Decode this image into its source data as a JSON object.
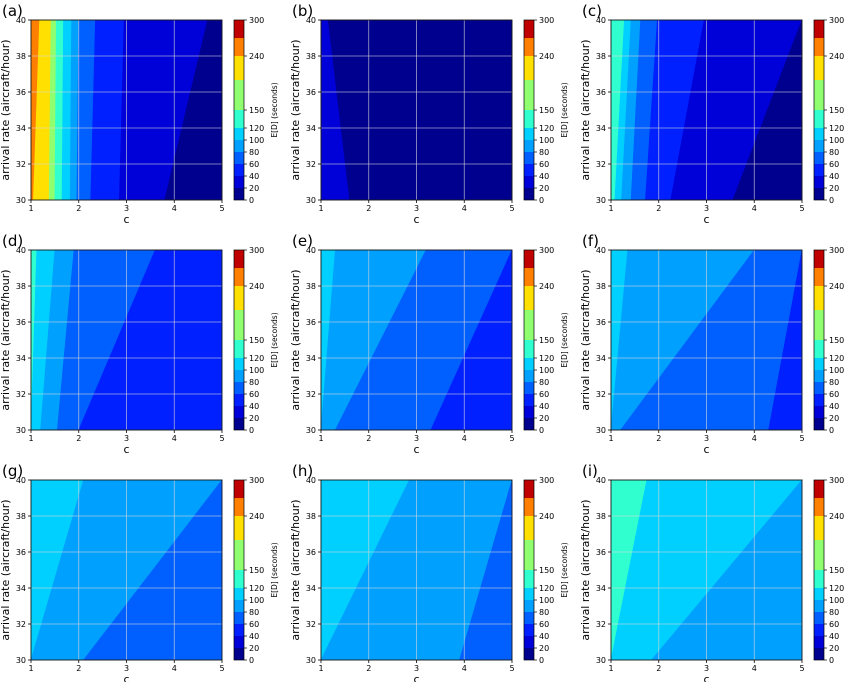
{
  "figure": {
    "description_colormap": "jet",
    "colorbar": {
      "label": "E[D] (seconds)",
      "ticks": [
        0,
        20,
        40,
        60,
        80,
        100,
        120,
        150,
        240,
        300
      ],
      "levels": [
        0,
        20,
        40,
        60,
        80,
        100,
        120,
        150,
        200,
        240,
        270,
        300
      ],
      "colors": [
        "#00008f",
        "#0000d8",
        "#0020ff",
        "#0060ff",
        "#00a0ff",
        "#00d0ff",
        "#30ffcf",
        "#8fff70",
        "#ffe000",
        "#ff8000",
        "#c00000"
      ]
    }
  },
  "chart_data": [
    {
      "type": "heatmap",
      "panel": "(a)",
      "xlabel": "c",
      "ylabel": "arrival rate (aircraft/hour)",
      "x_ticks": [
        1,
        2,
        3,
        4,
        5
      ],
      "y_ticks": [
        30,
        32,
        34,
        36,
        38,
        40
      ],
      "xlim": [
        1,
        5
      ],
      "ylim": [
        30,
        40
      ],
      "grid": true,
      "regions": [
        {
          "from_value": 240,
          "to_value": 300,
          "x_low": [
            1.0,
            1.0
          ],
          "x_high": [
            1.05,
            1.18
          ]
        },
        {
          "from_value": 200,
          "to_value": 240,
          "x_low": [
            1.05,
            1.18
          ],
          "x_high": [
            1.38,
            1.42
          ]
        },
        {
          "from_value": 150,
          "to_value": 200,
          "x_low": [
            1.38,
            1.42
          ],
          "x_high": [
            1.5,
            1.53
          ]
        },
        {
          "from_value": 120,
          "to_value": 150,
          "x_low": [
            1.5,
            1.53
          ],
          "x_high": [
            1.65,
            1.68
          ]
        },
        {
          "from_value": 100,
          "to_value": 120,
          "x_low": [
            1.65,
            1.68
          ],
          "x_high": [
            1.82,
            1.85
          ]
        },
        {
          "from_value": 80,
          "to_value": 100,
          "x_low": [
            1.82,
            1.85
          ],
          "x_high": [
            1.96,
            2.0
          ]
        },
        {
          "from_value": 60,
          "to_value": 80,
          "x_low": [
            1.96,
            2.0
          ],
          "x_high": [
            2.25,
            2.35
          ]
        },
        {
          "from_value": 40,
          "to_value": 60,
          "x_low": [
            2.25,
            2.35
          ],
          "x_high": [
            2.85,
            2.95
          ]
        },
        {
          "from_value": 20,
          "to_value": 40,
          "x_low": [
            2.85,
            2.95
          ],
          "x_high": [
            3.8,
            4.7
          ]
        },
        {
          "from_value": 0,
          "to_value": 20,
          "x_low": [
            3.8,
            4.7
          ],
          "x_high": [
            5.0,
            5.0
          ]
        }
      ]
    },
    {
      "type": "heatmap",
      "panel": "(b)",
      "xlabel": "c",
      "ylabel": "arrival rate (aircraft/hour)",
      "x_ticks": [
        1,
        2,
        3,
        4,
        5
      ],
      "y_ticks": [
        30,
        32,
        34,
        36,
        38,
        40
      ],
      "xlim": [
        1,
        5
      ],
      "ylim": [
        30,
        40
      ],
      "grid": true,
      "regions": [
        {
          "from_value": 20,
          "to_value": 40,
          "x_low": [
            1.0,
            1.0
          ],
          "x_high": [
            1.6,
            1.15
          ]
        },
        {
          "from_value": 0,
          "to_value": 20,
          "x_low": [
            1.6,
            1.15
          ],
          "x_high": [
            5.0,
            5.0
          ]
        }
      ]
    },
    {
      "type": "heatmap",
      "panel": "(c)",
      "xlabel": "c",
      "ylabel": "arrival rate (aircraft/hour)",
      "x_ticks": [
        1,
        2,
        3,
        4,
        5
      ],
      "y_ticks": [
        30,
        32,
        34,
        36,
        38,
        40
      ],
      "xlim": [
        1,
        5
      ],
      "ylim": [
        30,
        40
      ],
      "grid": true,
      "regions": [
        {
          "from_value": 120,
          "to_value": 150,
          "x_low": [
            1.0,
            1.0
          ],
          "x_high": [
            1.08,
            1.28
          ]
        },
        {
          "from_value": 100,
          "to_value": 120,
          "x_low": [
            1.08,
            1.28
          ],
          "x_high": [
            1.22,
            1.42
          ]
        },
        {
          "from_value": 80,
          "to_value": 100,
          "x_low": [
            1.22,
            1.42
          ],
          "x_high": [
            1.42,
            1.62
          ]
        },
        {
          "from_value": 60,
          "to_value": 80,
          "x_low": [
            1.42,
            1.62
          ],
          "x_high": [
            1.72,
            1.97
          ]
        },
        {
          "from_value": 40,
          "to_value": 60,
          "x_low": [
            1.72,
            1.97
          ],
          "x_high": [
            2.25,
            2.95
          ]
        },
        {
          "from_value": 20,
          "to_value": 40,
          "x_low": [
            2.25,
            2.95
          ],
          "x_high": [
            3.55,
            5.0
          ]
        },
        {
          "from_value": 0,
          "to_value": 20,
          "x_low": [
            3.55,
            5.0
          ],
          "x_high": [
            5.0,
            5.0
          ]
        }
      ]
    },
    {
      "type": "heatmap",
      "panel": "(d)",
      "xlabel": "c",
      "ylabel": "arrival rate (aircraft/hour)",
      "x_ticks": [
        1,
        2,
        3,
        4,
        5
      ],
      "y_ticks": [
        30,
        32,
        34,
        36,
        38,
        40
      ],
      "xlim": [
        1,
        5
      ],
      "ylim": [
        30,
        40
      ],
      "grid": true,
      "regions": [
        {
          "from_value": 120,
          "to_value": 150,
          "x_low": [
            1.0,
            1.0
          ],
          "x_high": [
            1.0,
            1.12
          ]
        },
        {
          "from_value": 100,
          "to_value": 120,
          "x_low": [
            1.0,
            1.12
          ],
          "x_high": [
            1.2,
            1.5
          ]
        },
        {
          "from_value": 80,
          "to_value": 100,
          "x_low": [
            1.2,
            1.5
          ],
          "x_high": [
            1.55,
            1.9
          ]
        },
        {
          "from_value": 60,
          "to_value": 80,
          "x_low": [
            1.55,
            1.9
          ],
          "x_high": [
            2.0,
            3.6
          ]
        },
        {
          "from_value": 40,
          "to_value": 60,
          "x_low": [
            2.0,
            3.6
          ],
          "x_high": [
            5.0,
            5.0
          ]
        }
      ]
    },
    {
      "type": "heatmap",
      "panel": "(e)",
      "xlabel": "c",
      "ylabel": "arrival rate (aircraft/hour)",
      "x_ticks": [
        1,
        2,
        3,
        4,
        5
      ],
      "y_ticks": [
        30,
        32,
        34,
        36,
        38,
        40
      ],
      "xlim": [
        1,
        5
      ],
      "ylim": [
        30,
        40
      ],
      "grid": true,
      "regions": [
        {
          "from_value": 100,
          "to_value": 120,
          "x_low": [
            1.0,
            1.0
          ],
          "x_high": [
            1.0,
            1.3
          ]
        },
        {
          "from_value": 80,
          "to_value": 100,
          "x_low": [
            1.0,
            1.3
          ],
          "x_high": [
            1.3,
            3.2
          ]
        },
        {
          "from_value": 60,
          "to_value": 80,
          "x_low": [
            1.3,
            3.2
          ],
          "x_high": [
            3.3,
            5.0
          ]
        },
        {
          "from_value": 40,
          "to_value": 60,
          "x_low": [
            3.3,
            5.0
          ],
          "x_high": [
            5.0,
            5.0
          ]
        }
      ]
    },
    {
      "type": "heatmap",
      "panel": "(f)",
      "xlabel": "c",
      "ylabel": "arrival rate (aircraft/hour)",
      "x_ticks": [
        1,
        2,
        3,
        4,
        5
      ],
      "y_ticks": [
        30,
        32,
        34,
        36,
        38,
        40
      ],
      "xlim": [
        1,
        5
      ],
      "ylim": [
        30,
        40
      ],
      "grid": true,
      "regions": [
        {
          "from_value": 100,
          "to_value": 120,
          "x_low": [
            1.0,
            1.0
          ],
          "x_high": [
            1.0,
            1.35
          ]
        },
        {
          "from_value": 80,
          "to_value": 100,
          "x_low": [
            1.0,
            1.35
          ],
          "x_high": [
            1.2,
            4.0
          ]
        },
        {
          "from_value": 60,
          "to_value": 80,
          "x_low": [
            1.2,
            4.0
          ],
          "x_high": [
            4.3,
            5.0
          ]
        },
        {
          "from_value": 40,
          "to_value": 60,
          "x_low": [
            4.3,
            5.0
          ],
          "x_high": [
            5.0,
            5.0
          ]
        }
      ]
    },
    {
      "type": "heatmap",
      "panel": "(g)",
      "xlabel": "c",
      "ylabel": "arrival rate (aircraft/hour)",
      "x_ticks": [
        1,
        2,
        3,
        4,
        5
      ],
      "y_ticks": [
        30,
        32,
        34,
        36,
        38,
        40
      ],
      "xlim": [
        1,
        5
      ],
      "ylim": [
        30,
        40
      ],
      "grid": true,
      "regions": [
        {
          "from_value": 100,
          "to_value": 120,
          "x_low": [
            1.0,
            1.0
          ],
          "x_high": [
            1.0,
            2.1
          ]
        },
        {
          "from_value": 80,
          "to_value": 100,
          "x_low": [
            1.0,
            2.1
          ],
          "x_high": [
            2.1,
            5.0
          ]
        },
        {
          "from_value": 60,
          "to_value": 80,
          "x_low": [
            2.1,
            5.0
          ],
          "x_high": [
            5.0,
            5.0
          ]
        }
      ]
    },
    {
      "type": "heatmap",
      "panel": "(h)",
      "xlabel": "c",
      "ylabel": "arrival rate (aircraft/hour)",
      "x_ticks": [
        1,
        2,
        3,
        4,
        5
      ],
      "y_ticks": [
        30,
        32,
        34,
        36,
        38,
        40
      ],
      "xlim": [
        1,
        5
      ],
      "ylim": [
        30,
        40
      ],
      "grid": true,
      "regions": [
        {
          "from_value": 100,
          "to_value": 120,
          "x_low": [
            1.0,
            1.0
          ],
          "x_high": [
            1.0,
            2.85
          ]
        },
        {
          "from_value": 80,
          "to_value": 100,
          "x_low": [
            1.0,
            2.85
          ],
          "x_high": [
            3.9,
            5.0
          ]
        },
        {
          "from_value": 60,
          "to_value": 80,
          "x_low": [
            3.9,
            5.0
          ],
          "x_high": [
            5.0,
            5.0
          ]
        }
      ]
    },
    {
      "type": "heatmap",
      "panel": "(i)",
      "xlabel": "c",
      "ylabel": "arrival rate (aircraft/hour)",
      "x_ticks": [
        1,
        2,
        3,
        4,
        5
      ],
      "y_ticks": [
        30,
        32,
        34,
        36,
        38,
        40
      ],
      "xlim": [
        1,
        5
      ],
      "ylim": [
        30,
        40
      ],
      "grid": true,
      "regions": [
        {
          "from_value": 120,
          "to_value": 150,
          "x_low": [
            1.0,
            1.0
          ],
          "x_high": [
            1.0,
            1.75
          ]
        },
        {
          "from_value": 100,
          "to_value": 120,
          "x_low": [
            1.0,
            1.75
          ],
          "x_high": [
            1.85,
            5.0
          ]
        },
        {
          "from_value": 80,
          "to_value": 100,
          "x_low": [
            1.85,
            5.0
          ],
          "x_high": [
            5.0,
            5.0
          ]
        }
      ]
    }
  ]
}
